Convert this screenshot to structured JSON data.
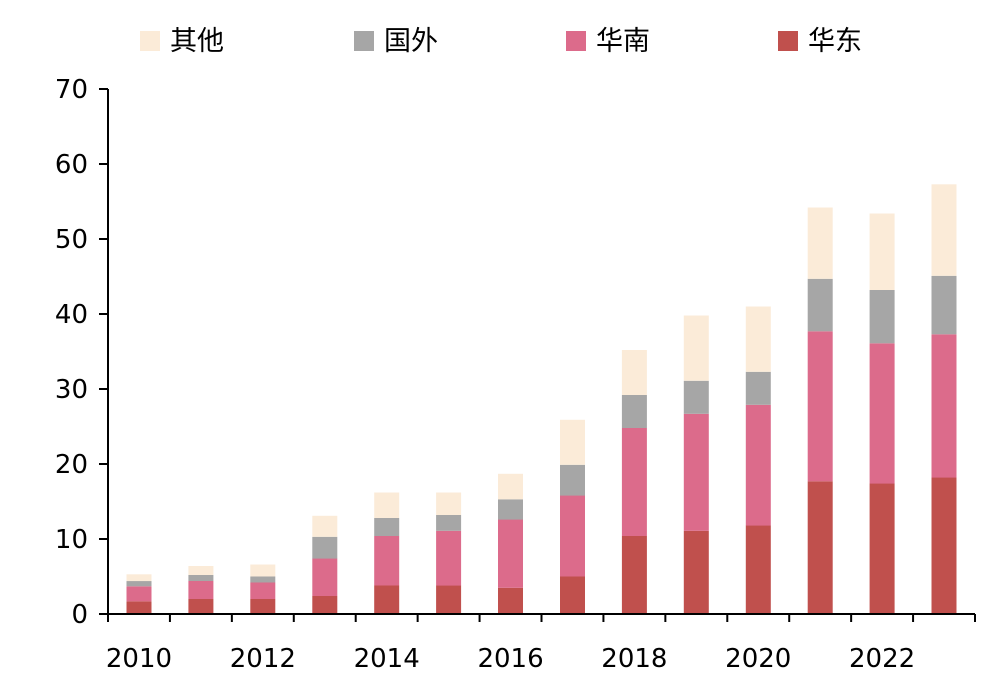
{
  "chart_data": {
    "type": "bar",
    "stacked": true,
    "categories": [
      "2010",
      "2011",
      "2012",
      "2013",
      "2014",
      "2015",
      "2016",
      "2017",
      "2018",
      "2019",
      "2020",
      "2021",
      "2022",
      "2023"
    ],
    "series": [
      {
        "name": "华东",
        "color": "#C0504D",
        "values": [
          1.7,
          2.0,
          2.0,
          2.4,
          3.8,
          3.8,
          3.5,
          5.0,
          10.4,
          11.1,
          11.8,
          17.7,
          17.4,
          18.2
        ]
      },
      {
        "name": "华南",
        "color": "#DC6B8B",
        "values": [
          2.0,
          2.4,
          2.2,
          5.0,
          6.6,
          7.3,
          9.1,
          10.8,
          14.4,
          15.6,
          16.1,
          20.0,
          18.7,
          19.1
        ]
      },
      {
        "name": "国外",
        "color": "#A6A6A6",
        "values": [
          0.7,
          0.8,
          0.8,
          2.9,
          2.4,
          2.1,
          2.7,
          4.1,
          4.4,
          4.4,
          4.4,
          7.0,
          7.1,
          7.8
        ]
      },
      {
        "name": "其他",
        "color": "#FBEBD8",
        "values": [
          0.9,
          1.2,
          1.6,
          2.8,
          3.4,
          3.0,
          3.4,
          6.0,
          6.0,
          8.7,
          8.7,
          9.5,
          10.2,
          12.2
        ]
      }
    ],
    "legend_order": [
      "其他",
      "国外",
      "华南",
      "华东"
    ],
    "x_tick_labels": [
      "2010",
      "2012",
      "2014",
      "2016",
      "2018",
      "2020",
      "2022"
    ],
    "y_ticks": [
      0,
      10,
      20,
      30,
      40,
      50,
      60,
      70
    ],
    "ylim": [
      0,
      70
    ],
    "title": "",
    "xlabel": "",
    "ylabel": "",
    "grid": false,
    "legend_position": "top"
  }
}
